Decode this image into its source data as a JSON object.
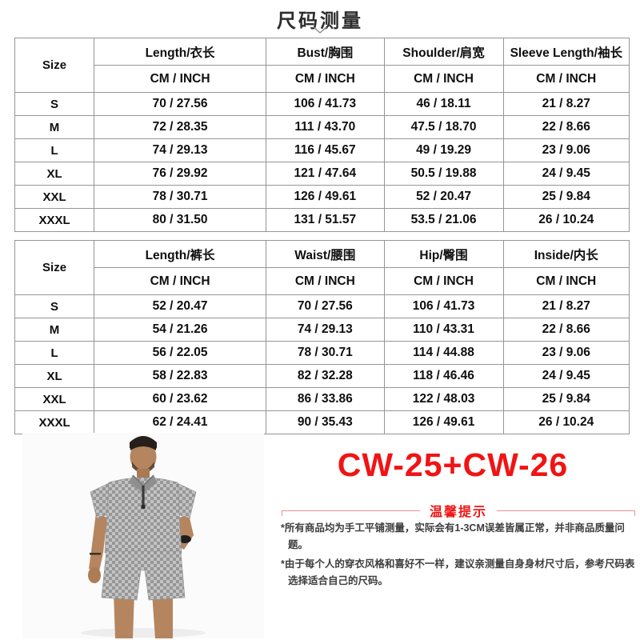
{
  "page": {
    "title": "尺码测量",
    "chevron_icon": "chevron-down-icon"
  },
  "colors": {
    "accent_red": "#f01414",
    "tip_line": "#e49191",
    "table_border": "#969696"
  },
  "tables": [
    {
      "name": "tops-size-table",
      "size_header": "Size",
      "unit_header": "CM / INCH",
      "columns": [
        "Length/衣长",
        "Bust/胸围",
        "Shoulder/肩宽",
        "Sleeve Length/袖长"
      ],
      "rows": [
        {
          "size": "S",
          "values": [
            "70 / 27.56",
            "106 / 41.73",
            "46 / 18.11",
            "21 / 8.27"
          ]
        },
        {
          "size": "M",
          "values": [
            "72 / 28.35",
            "111 / 43.70",
            "47.5 / 18.70",
            "22 / 8.66"
          ]
        },
        {
          "size": "L",
          "values": [
            "74 / 29.13",
            "116 / 45.67",
            "49 / 19.29",
            "23 / 9.06"
          ]
        },
        {
          "size": "XL",
          "values": [
            "76 / 29.92",
            "121 / 47.64",
            "50.5 / 19.88",
            "24 / 9.45"
          ]
        },
        {
          "size": "XXL",
          "values": [
            "78 / 30.71",
            "126 / 49.61",
            "52 / 20.47",
            "25 / 9.84"
          ]
        },
        {
          "size": "XXXL",
          "values": [
            "80 / 31.50",
            "131 / 51.57",
            "53.5 / 21.06",
            "26 / 10.24"
          ]
        }
      ]
    },
    {
      "name": "bottoms-size-table",
      "size_header": "Size",
      "unit_header": "CM / INCH",
      "columns": [
        "Length/裤长",
        "Waist/腰围",
        "Hip/臀围",
        "Inside/内长"
      ],
      "rows": [
        {
          "size": "S",
          "values": [
            "52 / 20.47",
            "70 / 27.56",
            "106 / 41.73",
            "21 / 8.27"
          ]
        },
        {
          "size": "M",
          "values": [
            "54 / 21.26",
            "74 / 29.13",
            "110 / 43.31",
            "22 / 8.66"
          ]
        },
        {
          "size": "L",
          "values": [
            "56 / 22.05",
            "78 / 30.71",
            "114 / 44.88",
            "23 / 9.06"
          ]
        },
        {
          "size": "XL",
          "values": [
            "58 / 22.83",
            "82 / 32.28",
            "118 / 46.46",
            "24 / 9.45"
          ]
        },
        {
          "size": "XXL",
          "values": [
            "60 / 23.62",
            "86 / 33.86",
            "122 / 48.03",
            "25 / 9.84"
          ]
        },
        {
          "size": "XXXL",
          "values": [
            "62 / 24.41",
            "90 / 35.43",
            "126 / 49.61",
            "26 / 10.24"
          ]
        }
      ]
    }
  ],
  "product": {
    "code": "CW-25+CW-26",
    "tips_title": "温馨提示",
    "notes": [
      "*所有商品均为手工平铺测量，实际会有1-3CM误差皆属正常，并非商品质量问题。",
      "*由于每个人的穿衣风格和喜好不一样，建议亲测量自身身材尺寸后，参考尺码表选择适合自己的尺码。"
    ],
    "photo_description": "model-wearing-gray-checkered-zip-polo-and-shorts"
  }
}
